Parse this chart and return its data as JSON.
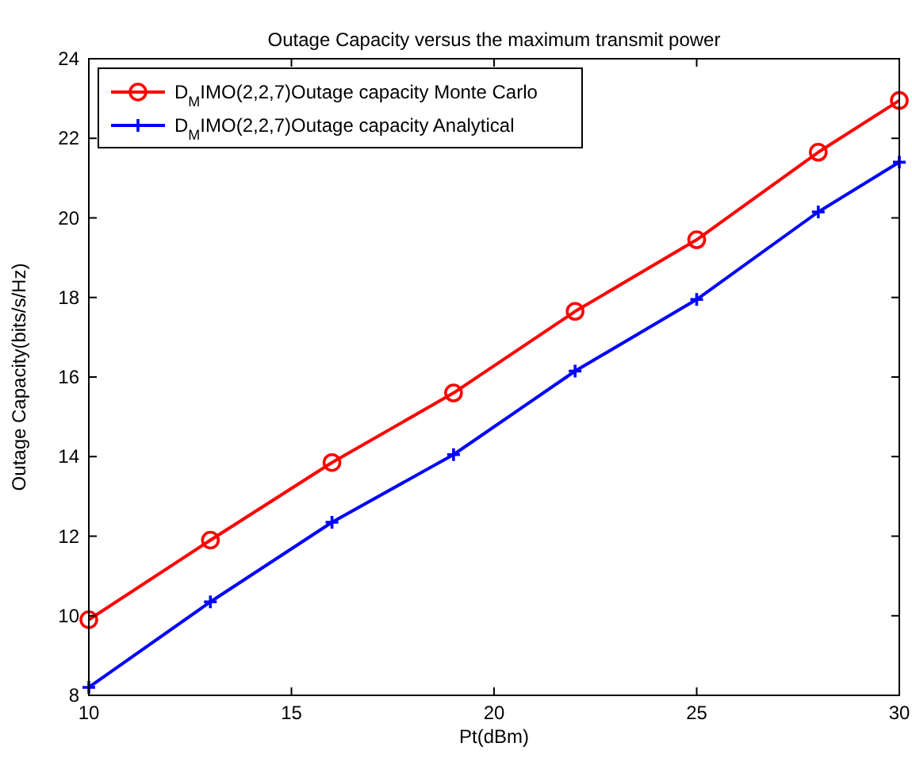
{
  "chart_data": {
    "type": "line",
    "title": "Outage Capacity versus the maximum transmit power",
    "xlabel": "Pt(dBm)",
    "ylabel": "Outage Capacity(bits/s/Hz)",
    "x": [
      10,
      13,
      16,
      19,
      22,
      25,
      28,
      30
    ],
    "series": [
      {
        "name": "D$_{M}$IMO(2,2,7)Outage capacity Monte Carlo",
        "color": "#ff0000",
        "marker": "circle",
        "values": [
          9.9,
          11.9,
          13.85,
          15.6,
          17.65,
          19.45,
          21.65,
          22.95
        ]
      },
      {
        "name": "D$_{M}$IMO(2,2,7)Outage capacity Analytical",
        "color": "#0000ff",
        "marker": "cross",
        "values": [
          8.2,
          10.35,
          12.35,
          14.05,
          16.15,
          17.95,
          20.15,
          21.4
        ]
      }
    ],
    "xlim": [
      10,
      30
    ],
    "xticks": [
      10,
      15,
      20,
      25,
      30
    ],
    "ylim": [
      8,
      24
    ],
    "yticks": [
      8,
      10,
      12,
      14,
      16,
      18,
      20,
      22,
      24
    ],
    "grid": false,
    "legend": "top left",
    "line_style": "solid"
  }
}
